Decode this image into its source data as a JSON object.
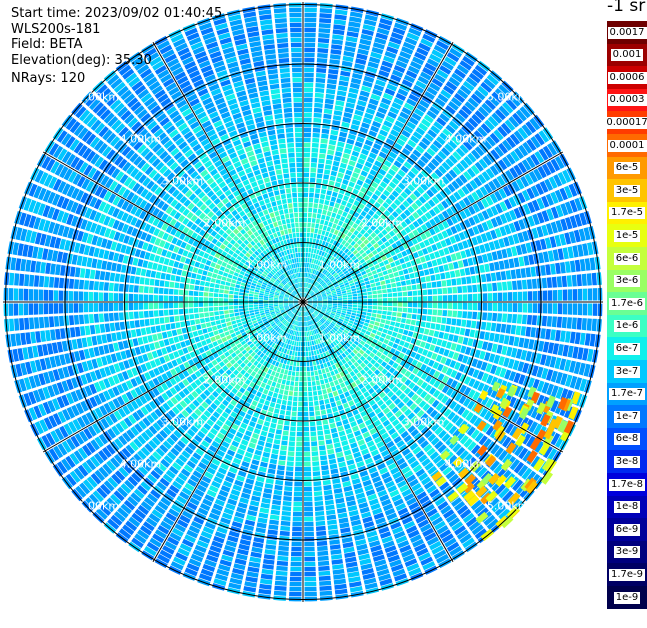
{
  "info": {
    "start_time": "Start time: 2023/09/02 01:40:45",
    "device": "WLS200s-181",
    "field": "Field: BETA",
    "elevation": "Elevation(deg): 35.30",
    "nrays": "NRays: 120"
  },
  "colorbar": {
    "unit_label": "-1 sr",
    "ticks": [
      "0.0017",
      "0.001",
      "0.0006",
      "0.0003",
      "0.00017",
      "0.0001",
      "6e-5",
      "3e-5",
      "1.7e-5",
      "1e-5",
      "6e-6",
      "3e-6",
      "1.7e-6",
      "1e-6",
      "6e-7",
      "3e-7",
      "1.7e-7",
      "1e-7",
      "6e-8",
      "3e-8",
      "1.7e-8",
      "1e-8",
      "6e-9",
      "3e-9",
      "1.7e-9",
      "1e-9"
    ],
    "colors": [
      "#6e0000",
      "#9c0000",
      "#cc0000",
      "#ff1414",
      "#ff3c00",
      "#ff6a00",
      "#ff9a00",
      "#ffc400",
      "#fff000",
      "#e8ff10",
      "#c4ff3c",
      "#9aff64",
      "#6aff94",
      "#3cffc4",
      "#10f0ec",
      "#00c8ff",
      "#00a0ff",
      "#0078ff",
      "#0050ff",
      "#0028f0",
      "#0000dc",
      "#0000b8",
      "#00009a",
      "#00007e",
      "#000064",
      "#00004c"
    ]
  },
  "ppi": {
    "ring_labels": [
      "1.00km",
      "2.00km",
      "3.00km",
      "4.00km",
      "5.00km"
    ]
  }
}
